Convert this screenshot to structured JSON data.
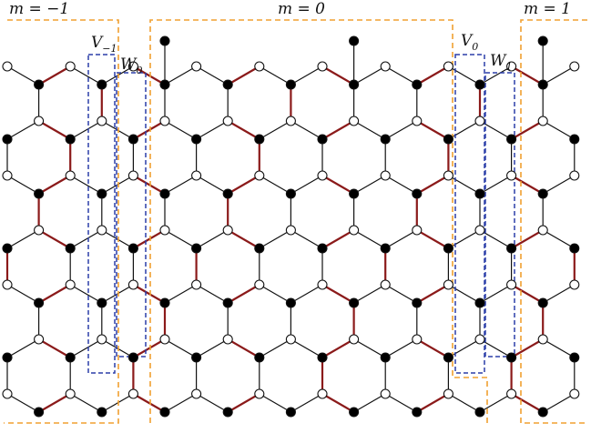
{
  "labels": {
    "sector_left": "m = −1",
    "sector_mid": "m = 0",
    "sector_right": "m = 1",
    "v_left_main": "V",
    "v_left_sub": "−1",
    "w_left_main": "W",
    "w_left_sub": "0",
    "v_right_main": "V",
    "v_right_sub": "0",
    "w_right_main": "W",
    "w_right_sub": "1"
  },
  "colors": {
    "black_edge": "#111111",
    "dimer_edge": "#8b1a1a",
    "sector_box": "#f0a030",
    "vw_box": "#2b3ea8",
    "white_node_fill": "#ffffff",
    "black_node_fill": "#000000"
  }
}
